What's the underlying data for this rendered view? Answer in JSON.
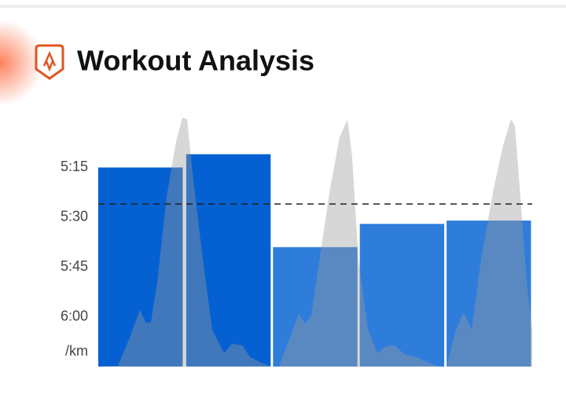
{
  "header": {
    "title": "Workout Analysis"
  },
  "chart_data": {
    "type": "bar",
    "y_unit_label": "/km",
    "categories": [
      null,
      null,
      null,
      null,
      null
    ],
    "series": [
      {
        "values": [
          315,
          311,
          339,
          332,
          331
        ],
        "colors": [
          "#0561d1",
          "#0561d1",
          "#2f7ddb",
          "#2f7ddb",
          "#2f7ddb"
        ]
      }
    ],
    "average": 326,
    "ylim": [
      375,
      300
    ],
    "yticks": [
      {
        "value": 315,
        "label": "5:15"
      },
      {
        "value": 330,
        "label": "5:30"
      },
      {
        "value": 345,
        "label": "5:45"
      },
      {
        "value": 360,
        "label": "6:00"
      }
    ],
    "grid": false
  }
}
